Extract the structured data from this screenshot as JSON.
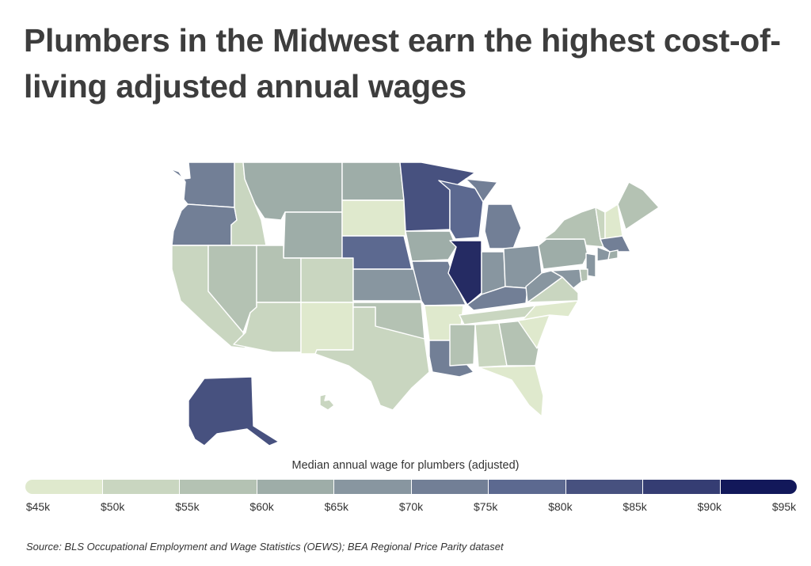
{
  "title": "Plumbers in the Midwest earn the highest cost-of-living adjusted annual wages",
  "legend": {
    "title": "Median annual wage for plumbers (adjusted)",
    "tick_labels": [
      "$45k",
      "$50k",
      "$55k",
      "$60k",
      "$65k",
      "$70k",
      "$75k",
      "$80k",
      "$85k",
      "$90k",
      "$95k"
    ],
    "colors": [
      "#dfe9cd",
      "#c9d6c0",
      "#b4c2b3",
      "#9eada8",
      "#8896a0",
      "#727f96",
      "#5c6990",
      "#47517f",
      "#353d73",
      "#252b63",
      "#12185a"
    ]
  },
  "source": "Source:  BLS Occupational Employment and Wage Statistics (OEWS); BEA Regional Price Parity dataset",
  "chart_data": {
    "type": "choropleth",
    "metric": "Median annual wage for plumbers (adjusted)",
    "units": "USD thousands",
    "scale_range": [
      45,
      95
    ],
    "bin_width": 5,
    "states": [
      {
        "state": "WA",
        "wage_k": 73
      },
      {
        "state": "OR",
        "wage_k": 73
      },
      {
        "state": "CA",
        "wage_k": 52
      },
      {
        "state": "ID",
        "wage_k": 52
      },
      {
        "state": "NV",
        "wage_k": 57
      },
      {
        "state": "MT",
        "wage_k": 62
      },
      {
        "state": "WY",
        "wage_k": 63
      },
      {
        "state": "UT",
        "wage_k": 55
      },
      {
        "state": "CO",
        "wage_k": 53
      },
      {
        "state": "AZ",
        "wage_k": 52
      },
      {
        "state": "NM",
        "wage_k": 48
      },
      {
        "state": "ND",
        "wage_k": 61
      },
      {
        "state": "SD",
        "wage_k": 48
      },
      {
        "state": "NE",
        "wage_k": 78
      },
      {
        "state": "KS",
        "wage_k": 68
      },
      {
        "state": "OK",
        "wage_k": 58
      },
      {
        "state": "TX",
        "wage_k": 53
      },
      {
        "state": "MN",
        "wage_k": 83
      },
      {
        "state": "IA",
        "wage_k": 61
      },
      {
        "state": "MO",
        "wage_k": 72
      },
      {
        "state": "AR",
        "wage_k": 47
      },
      {
        "state": "LA",
        "wage_k": 74
      },
      {
        "state": "WI",
        "wage_k": 76
      },
      {
        "state": "IL",
        "wage_k": 94
      },
      {
        "state": "MI",
        "wage_k": 73
      },
      {
        "state": "IN",
        "wage_k": 66
      },
      {
        "state": "OH",
        "wage_k": 68
      },
      {
        "state": "KY",
        "wage_k": 74
      },
      {
        "state": "TN",
        "wage_k": 53
      },
      {
        "state": "MS",
        "wage_k": 56
      },
      {
        "state": "AL",
        "wage_k": 54
      },
      {
        "state": "GA",
        "wage_k": 57
      },
      {
        "state": "FL",
        "wage_k": 48
      },
      {
        "state": "SC",
        "wage_k": 48
      },
      {
        "state": "NC",
        "wage_k": 49
      },
      {
        "state": "VA",
        "wage_k": 51
      },
      {
        "state": "WV",
        "wage_k": 67
      },
      {
        "state": "PA",
        "wage_k": 63
      },
      {
        "state": "NY",
        "wage_k": 58
      },
      {
        "state": "VT",
        "wage_k": 53
      },
      {
        "state": "NH",
        "wage_k": 48
      },
      {
        "state": "ME",
        "wage_k": 57
      },
      {
        "state": "MA",
        "wage_k": 72
      },
      {
        "state": "CT",
        "wage_k": 68
      },
      {
        "state": "RI",
        "wage_k": 62
      },
      {
        "state": "NJ",
        "wage_k": 67
      },
      {
        "state": "DE",
        "wage_k": 55
      },
      {
        "state": "MD",
        "wage_k": 66
      },
      {
        "state": "AK",
        "wage_k": 81
      },
      {
        "state": "HI",
        "wage_k": 52
      }
    ]
  }
}
